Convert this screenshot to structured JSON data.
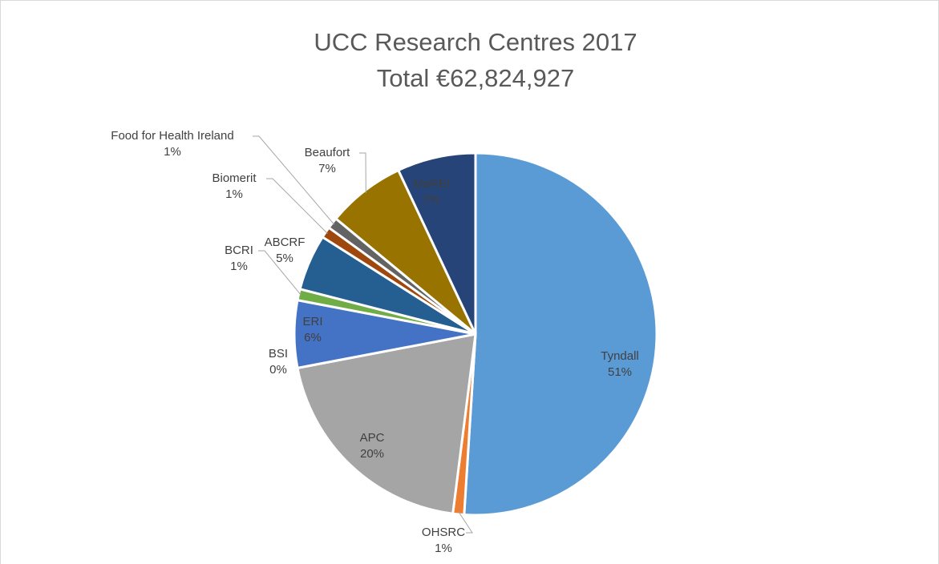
{
  "chart_data": {
    "type": "pie",
    "title": "UCC Research Centres 2017",
    "subtitle": "Total €62,824,927",
    "categories": [
      "Tyndall",
      "OHSRC",
      "APC",
      "BSI",
      "ERI",
      "BCRI",
      "ABCRF",
      "Biomerit",
      "Food for Health Ireland",
      "Beaufort",
      "MaREI"
    ],
    "values": [
      51,
      1,
      20,
      0,
      6,
      1,
      5,
      1,
      1,
      7,
      7
    ],
    "value_labels": [
      "51%",
      "1%",
      "20%",
      "0%",
      "6%",
      "1%",
      "5%",
      "1%",
      "1%",
      "7%",
      "7%"
    ],
    "colors": [
      "#5b9bd5",
      "#ed7d31",
      "#a5a5a5",
      "#ffc000",
      "#4472c4",
      "#70ad47",
      "#255e91",
      "#9e480e",
      "#636363",
      "#997300",
      "#264478"
    ]
  }
}
